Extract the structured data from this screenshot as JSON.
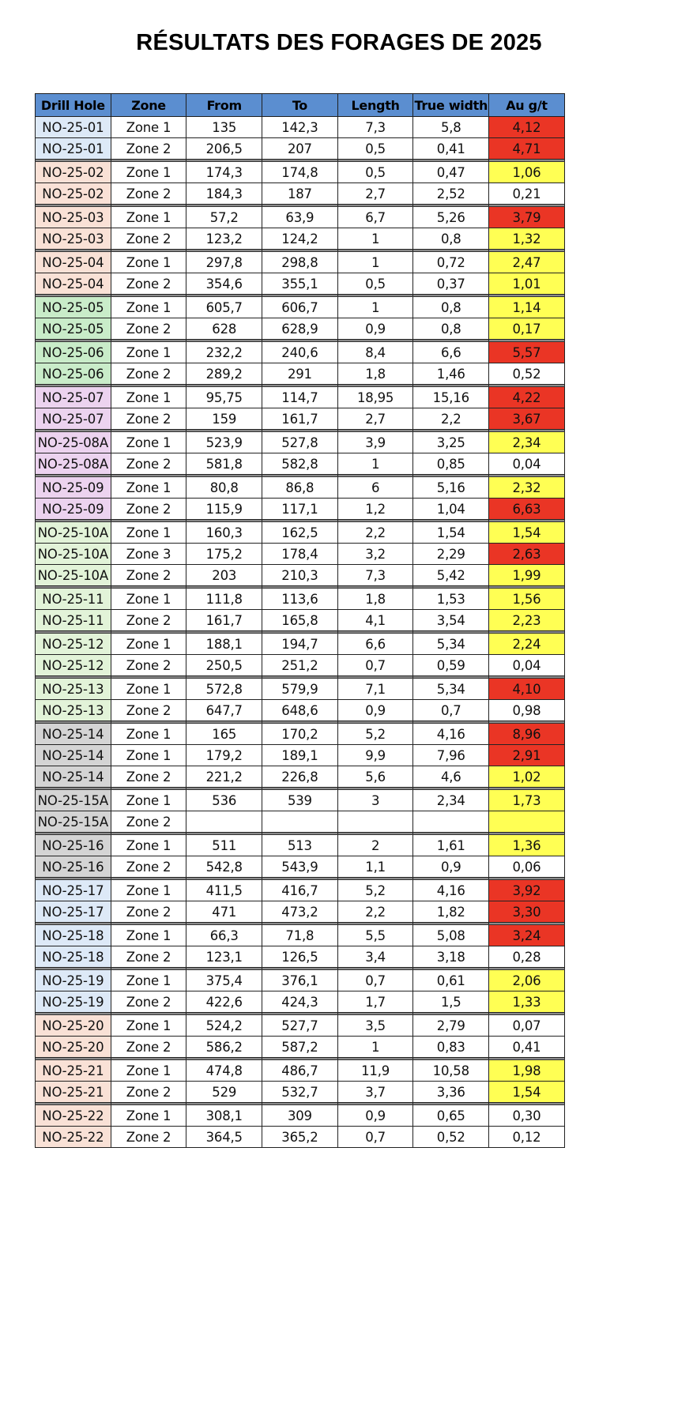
{
  "title": "RÉSULTATS DES FORAGES DE 2025",
  "colors": {
    "header_bg": "#5b8ed0",
    "au_high": "#ea3525",
    "au_mid": "#ffff54",
    "hole_blue": "#dde9f7",
    "hole_peach": "#f9e1d6",
    "hole_green": "#c9ecc9",
    "hole_light_green": "#e2f3d8",
    "hole_violet": "#ecd3ef",
    "hole_grey": "#d4d4d4"
  },
  "table": {
    "headers": [
      "Drill Hole",
      "Zone",
      "From",
      "To",
      "Length",
      "True width",
      "Au g/t"
    ],
    "groups": [
      {
        "hole_color": "blue",
        "rows": [
          {
            "hole": "NO-25-01",
            "zone": "Zone 1",
            "from": "135",
            "to": "142,3",
            "length": "7,3",
            "true_width": "5,8",
            "au": "4,12",
            "au_flag": "red"
          },
          {
            "hole": "NO-25-01",
            "zone": "Zone 2",
            "from": "206,5",
            "to": "207",
            "length": "0,5",
            "true_width": "0,41",
            "au": "4,71",
            "au_flag": "red"
          }
        ]
      },
      {
        "hole_color": "peach",
        "rows": [
          {
            "hole": "NO-25-02",
            "zone": "Zone 1",
            "from": "174,3",
            "to": "174,8",
            "length": "0,5",
            "true_width": "0,47",
            "au": "1,06",
            "au_flag": "yellow"
          },
          {
            "hole": "NO-25-02",
            "zone": "Zone 2",
            "from": "184,3",
            "to": "187",
            "length": "2,7",
            "true_width": "2,52",
            "au": "0,21",
            "au_flag": "none"
          }
        ]
      },
      {
        "hole_color": "peach",
        "rows": [
          {
            "hole": "NO-25-03",
            "zone": "Zone 1",
            "from": "57,2",
            "to": "63,9",
            "length": "6,7",
            "true_width": "5,26",
            "au": "3,79",
            "au_flag": "red"
          },
          {
            "hole": "NO-25-03",
            "zone": "Zone 2",
            "from": "123,2",
            "to": "124,2",
            "length": "1",
            "true_width": "0,8",
            "au": "1,32",
            "au_flag": "yellow"
          }
        ]
      },
      {
        "hole_color": "peach",
        "rows": [
          {
            "hole": "NO-25-04",
            "zone": "Zone 1",
            "from": "297,8",
            "to": "298,8",
            "length": "1",
            "true_width": "0,72",
            "au": "2,47",
            "au_flag": "yellow"
          },
          {
            "hole": "NO-25-04",
            "zone": "Zone 2",
            "from": "354,6",
            "to": "355,1",
            "length": "0,5",
            "true_width": "0,37",
            "au": "1,01",
            "au_flag": "yellow"
          }
        ]
      },
      {
        "hole_color": "green",
        "rows": [
          {
            "hole": "NO-25-05",
            "zone": "Zone 1",
            "from": "605,7",
            "to": "606,7",
            "length": "1",
            "true_width": "0,8",
            "au": "1,14",
            "au_flag": "yellow"
          },
          {
            "hole": "NO-25-05",
            "zone": "Zone 2",
            "from": "628",
            "to": "628,9",
            "length": "0,9",
            "true_width": "0,8",
            "au": "0,17",
            "au_flag": "yellow"
          }
        ]
      },
      {
        "hole_color": "green",
        "rows": [
          {
            "hole": "NO-25-06",
            "zone": "Zone 1",
            "from": "232,2",
            "to": "240,6",
            "length": "8,4",
            "true_width": "6,6",
            "au": "5,57",
            "au_flag": "red"
          },
          {
            "hole": "NO-25-06",
            "zone": "Zone 2",
            "from": "289,2",
            "to": "291",
            "length": "1,8",
            "true_width": "1,46",
            "au": "0,52",
            "au_flag": "none"
          }
        ]
      },
      {
        "hole_color": "violet",
        "rows": [
          {
            "hole": "NO-25-07",
            "zone": "Zone 1",
            "from": "95,75",
            "to": "114,7",
            "length": "18,95",
            "true_width": "15,16",
            "au": "4,22",
            "au_flag": "red"
          },
          {
            "hole": "NO-25-07",
            "zone": "Zone 2",
            "from": "159",
            "to": "161,7",
            "length": "2,7",
            "true_width": "2,2",
            "au": "3,67",
            "au_flag": "red"
          }
        ]
      },
      {
        "hole_color": "violet",
        "rows": [
          {
            "hole": "NO-25-08A",
            "zone": "Zone 1",
            "from": "523,9",
            "to": "527,8",
            "length": "3,9",
            "true_width": "3,25",
            "au": "2,34",
            "au_flag": "yellow"
          },
          {
            "hole": "NO-25-08A",
            "zone": "Zone 2",
            "from": "581,8",
            "to": "582,8",
            "length": "1",
            "true_width": "0,85",
            "au": "0,04",
            "au_flag": "none"
          }
        ]
      },
      {
        "hole_color": "violet",
        "rows": [
          {
            "hole": "NO-25-09",
            "zone": "Zone 1",
            "from": "80,8",
            "to": "86,8",
            "length": "6",
            "true_width": "5,16",
            "au": "2,32",
            "au_flag": "yellow"
          },
          {
            "hole": "NO-25-09",
            "zone": "Zone 2",
            "from": "115,9",
            "to": "117,1",
            "length": "1,2",
            "true_width": "1,04",
            "au": "6,63",
            "au_flag": "red"
          }
        ]
      },
      {
        "hole_color": "lgreen",
        "rows": [
          {
            "hole": "NO-25-10A",
            "zone": "Zone 1",
            "from": "160,3",
            "to": "162,5",
            "length": "2,2",
            "true_width": "1,54",
            "au": "1,54",
            "au_flag": "yellow"
          },
          {
            "hole": "NO-25-10A",
            "zone": "Zone 3",
            "from": "175,2",
            "to": "178,4",
            "length": "3,2",
            "true_width": "2,29",
            "au": "2,63",
            "au_flag": "red"
          },
          {
            "hole": "NO-25-10A",
            "zone": "Zone 2",
            "from": "203",
            "to": "210,3",
            "length": "7,3",
            "true_width": "5,42",
            "au": "1,99",
            "au_flag": "yellow"
          }
        ]
      },
      {
        "hole_color": "lgreen",
        "rows": [
          {
            "hole": "NO-25-11",
            "zone": "Zone 1",
            "from": "111,8",
            "to": "113,6",
            "length": "1,8",
            "true_width": "1,53",
            "au": "1,56",
            "au_flag": "yellow"
          },
          {
            "hole": "NO-25-11",
            "zone": "Zone 2",
            "from": "161,7",
            "to": "165,8",
            "length": "4,1",
            "true_width": "3,54",
            "au": "2,23",
            "au_flag": "yellow"
          }
        ]
      },
      {
        "hole_color": "lgreen",
        "rows": [
          {
            "hole": "NO-25-12",
            "zone": "Zone 1",
            "from": "188,1",
            "to": "194,7",
            "length": "6,6",
            "true_width": "5,34",
            "au": "2,24",
            "au_flag": "yellow"
          },
          {
            "hole": "NO-25-12",
            "zone": "Zone 2",
            "from": "250,5",
            "to": "251,2",
            "length": "0,7",
            "true_width": "0,59",
            "au": "0,04",
            "au_flag": "none"
          }
        ]
      },
      {
        "hole_color": "lgreen",
        "rows": [
          {
            "hole": "NO-25-13",
            "zone": "Zone 1",
            "from": "572,8",
            "to": "579,9",
            "length": "7,1",
            "true_width": "5,34",
            "au": "4,10",
            "au_flag": "red"
          },
          {
            "hole": "NO-25-13",
            "zone": "Zone 2",
            "from": "647,7",
            "to": "648,6",
            "length": "0,9",
            "true_width": "0,7",
            "au": "0,98",
            "au_flag": "none"
          }
        ]
      },
      {
        "hole_color": "grey",
        "rows": [
          {
            "hole": "NO-25-14",
            "zone": "Zone 1",
            "from": "165",
            "to": "170,2",
            "length": "5,2",
            "true_width": "4,16",
            "au": "8,96",
            "au_flag": "red"
          },
          {
            "hole": "NO-25-14",
            "zone": "Zone 1",
            "from": "179,2",
            "to": "189,1",
            "length": "9,9",
            "true_width": "7,96",
            "au": "2,91",
            "au_flag": "red"
          },
          {
            "hole": "NO-25-14",
            "zone": "Zone 2",
            "from": "221,2",
            "to": "226,8",
            "length": "5,6",
            "true_width": "4,6",
            "au": "1,02",
            "au_flag": "yellow"
          }
        ]
      },
      {
        "hole_color": "grey",
        "rows": [
          {
            "hole": "NO-25-15A",
            "zone": "Zone 1",
            "from": "536",
            "to": "539",
            "length": "3",
            "true_width": "2,34",
            "au": "1,73",
            "au_flag": "yellow"
          },
          {
            "hole": "NO-25-15A",
            "zone": "Zone 2",
            "from": "",
            "to": "",
            "length": "",
            "true_width": "",
            "au": "",
            "au_flag": "yellow"
          }
        ]
      },
      {
        "hole_color": "grey",
        "rows": [
          {
            "hole": "NO-25-16",
            "zone": "Zone 1",
            "from": "511",
            "to": "513",
            "length": "2",
            "true_width": "1,61",
            "au": "1,36",
            "au_flag": "yellow"
          },
          {
            "hole": "NO-25-16",
            "zone": "Zone 2",
            "from": "542,8",
            "to": "543,9",
            "length": "1,1",
            "true_width": "0,9",
            "au": "0,06",
            "au_flag": "none"
          }
        ]
      },
      {
        "hole_color": "blue",
        "rows": [
          {
            "hole": "NO-25-17",
            "zone": "Zone 1",
            "from": "411,5",
            "to": "416,7",
            "length": "5,2",
            "true_width": "4,16",
            "au": "3,92",
            "au_flag": "red"
          },
          {
            "hole": "NO-25-17",
            "zone": "Zone 2",
            "from": "471",
            "to": "473,2",
            "length": "2,2",
            "true_width": "1,82",
            "au": "3,30",
            "au_flag": "red"
          }
        ]
      },
      {
        "hole_color": "blue",
        "rows": [
          {
            "hole": "NO-25-18",
            "zone": "Zone 1",
            "from": "66,3",
            "to": "71,8",
            "length": "5,5",
            "true_width": "5,08",
            "au": "3,24",
            "au_flag": "red"
          },
          {
            "hole": "NO-25-18",
            "zone": "Zone 2",
            "from": "123,1",
            "to": "126,5",
            "length": "3,4",
            "true_width": "3,18",
            "au": "0,28",
            "au_flag": "none"
          }
        ]
      },
      {
        "hole_color": "blue",
        "rows": [
          {
            "hole": "NO-25-19",
            "zone": "Zone 1",
            "from": "375,4",
            "to": "376,1",
            "length": "0,7",
            "true_width": "0,61",
            "au": "2,06",
            "au_flag": "yellow"
          },
          {
            "hole": "NO-25-19",
            "zone": "Zone 2",
            "from": "422,6",
            "to": "424,3",
            "length": "1,7",
            "true_width": "1,5",
            "au": "1,33",
            "au_flag": "yellow"
          }
        ]
      },
      {
        "hole_color": "peach",
        "rows": [
          {
            "hole": "NO-25-20",
            "zone": "Zone 1",
            "from": "524,2",
            "to": "527,7",
            "length": "3,5",
            "true_width": "2,79",
            "au": "0,07",
            "au_flag": "none"
          },
          {
            "hole": "NO-25-20",
            "zone": "Zone 2",
            "from": "586,2",
            "to": "587,2",
            "length": "1",
            "true_width": "0,83",
            "au": "0,41",
            "au_flag": "none"
          }
        ]
      },
      {
        "hole_color": "peach",
        "rows": [
          {
            "hole": "NO-25-21",
            "zone": "Zone 1",
            "from": "474,8",
            "to": "486,7",
            "length": "11,9",
            "true_width": "10,58",
            "au": "1,98",
            "au_flag": "yellow"
          },
          {
            "hole": "NO-25-21",
            "zone": "Zone 2",
            "from": "529",
            "to": "532,7",
            "length": "3,7",
            "true_width": "3,36",
            "au": "1,54",
            "au_flag": "yellow"
          }
        ]
      },
      {
        "hole_color": "peach",
        "rows": [
          {
            "hole": "NO-25-22",
            "zone": "Zone 1",
            "from": "308,1",
            "to": "309",
            "length": "0,9",
            "true_width": "0,65",
            "au": "0,30",
            "au_flag": "none"
          },
          {
            "hole": "NO-25-22",
            "zone": "Zone 2",
            "from": "364,5",
            "to": "365,2",
            "length": "0,7",
            "true_width": "0,52",
            "au": "0,12",
            "au_flag": "none"
          }
        ]
      }
    ]
  }
}
